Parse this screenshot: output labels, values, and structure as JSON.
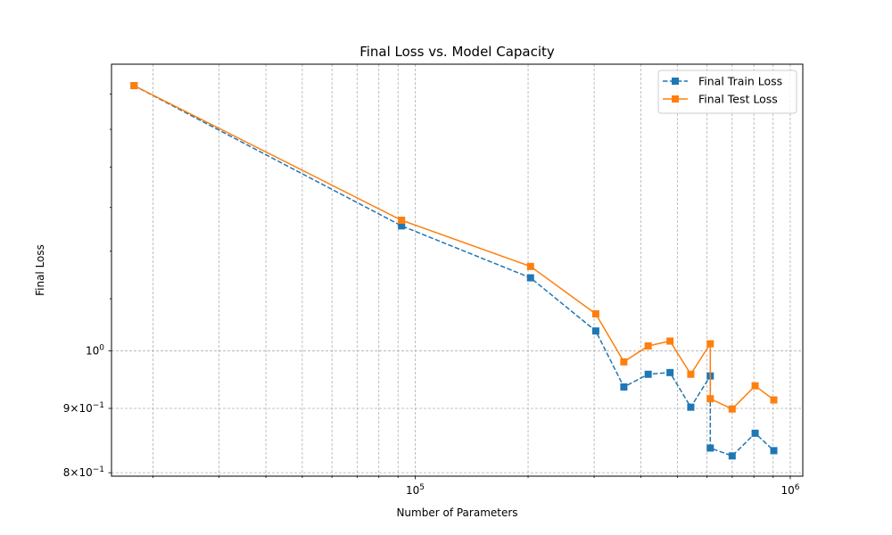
{
  "chart_data": {
    "type": "line",
    "title": "Final Loss vs. Model Capacity",
    "xlabel": "Number of Parameters",
    "ylabel": "Final Loss",
    "xscale": "log",
    "yscale": "log",
    "xlim": [
      15500,
      1080000
    ],
    "ylim": [
      0.795,
      1.69
    ],
    "x_ticks": [
      {
        "value": 100000,
        "base": "10",
        "exp": "5"
      },
      {
        "value": 1000000,
        "base": "10",
        "exp": "6"
      }
    ],
    "y_ticks": [
      {
        "value": 1.0,
        "label": "10",
        "sup": "0"
      },
      {
        "value": 0.9,
        "label": "9×10",
        "sup": "−1"
      },
      {
        "value": 0.8,
        "label": "8×10",
        "sup": "−1"
      }
    ],
    "grid": true,
    "legend_position": "top-right",
    "series": [
      {
        "name": "Final Train Loss",
        "color": "#1f77b4",
        "line_style": "dashed",
        "marker": "square",
        "points": [
          [
            17800,
            1.625
          ],
          [
            92000,
            1.257
          ],
          [
            203000,
            1.143
          ],
          [
            303000,
            1.037
          ],
          [
            360000,
            0.936
          ],
          [
            418000,
            0.958
          ],
          [
            478000,
            0.961
          ],
          [
            543000,
            0.902
          ],
          [
            612000,
            0.955
          ],
          [
            612000,
            0.837
          ],
          [
            700000,
            0.825
          ],
          [
            806000,
            0.86
          ],
          [
            904000,
            0.833
          ]
        ]
      },
      {
        "name": "Final Test Loss",
        "color": "#ff7f0e",
        "line_style": "solid",
        "marker": "square",
        "points": [
          [
            17800,
            1.625
          ],
          [
            92000,
            1.27
          ],
          [
            203000,
            1.167
          ],
          [
            303000,
            1.07
          ],
          [
            360000,
            0.98
          ],
          [
            418000,
            1.009
          ],
          [
            478000,
            1.018
          ],
          [
            543000,
            0.958
          ],
          [
            612000,
            1.013
          ],
          [
            612000,
            0.916
          ],
          [
            700000,
            0.899
          ],
          [
            806000,
            0.938
          ],
          [
            904000,
            0.914
          ]
        ]
      }
    ]
  }
}
